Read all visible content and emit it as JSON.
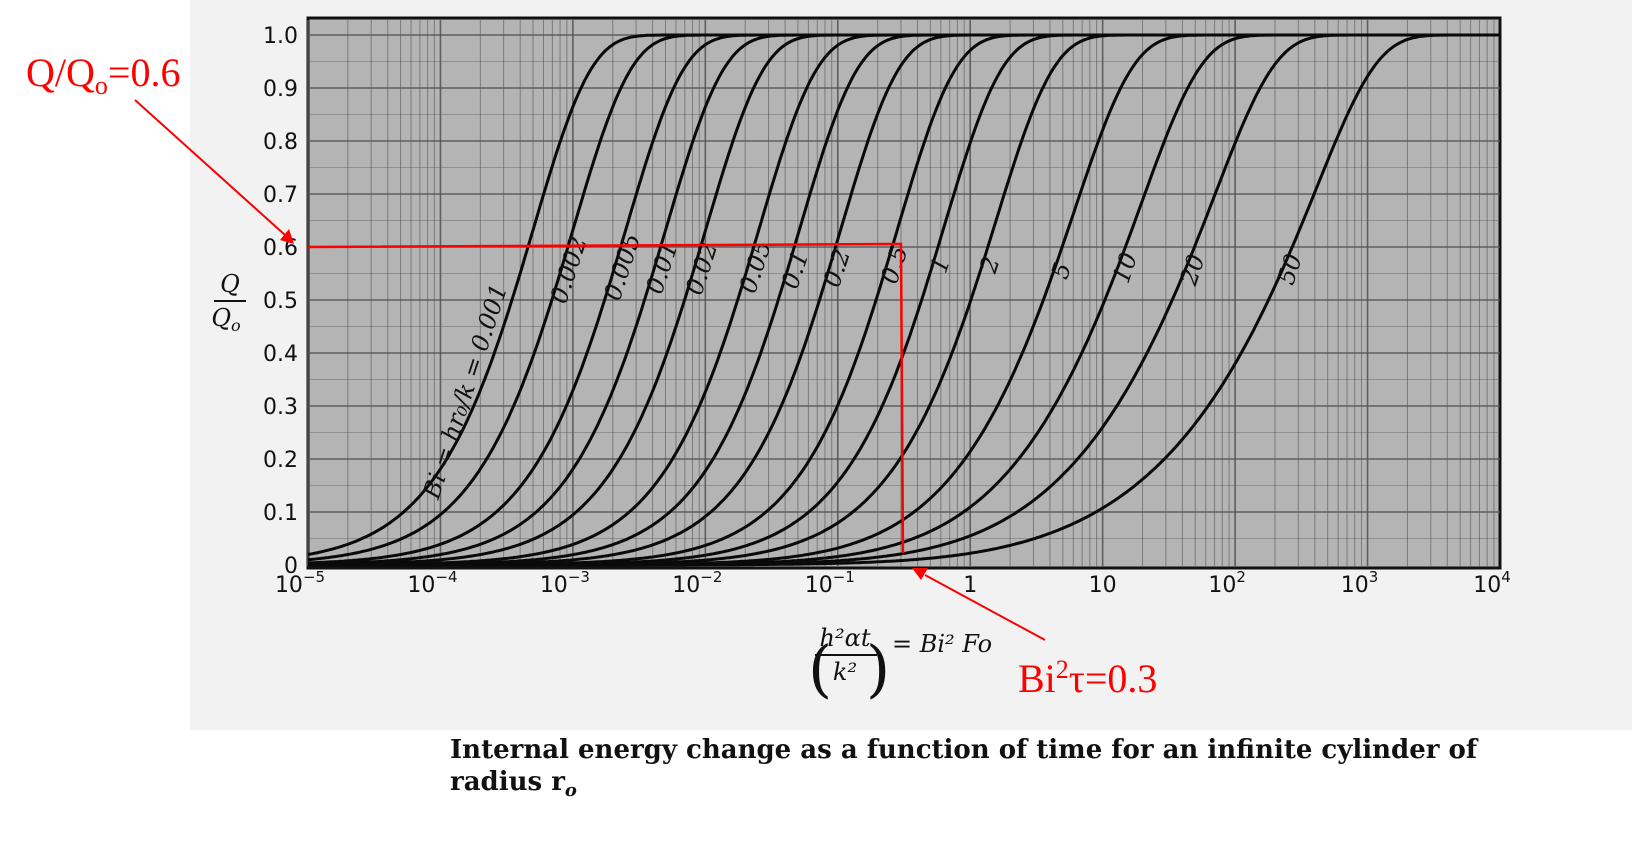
{
  "chart_data": {
    "type": "line",
    "title": "",
    "caption_line1": "Internal energy change as a function of time for an infinite cylinder of",
    "caption_line2": "radius r",
    "caption_sub": "o",
    "xscale": "log",
    "xlim": [
      1e-05,
      10000
    ],
    "ylim": [
      0,
      1.0
    ],
    "xticks": [
      1e-05,
      0.0001,
      0.001,
      0.01,
      0.1,
      1,
      10,
      100,
      1000,
      10000
    ],
    "xtick_labels": [
      {
        "base": "10",
        "exp": "−5"
      },
      {
        "base": "10",
        "exp": "−4"
      },
      {
        "base": "10",
        "exp": "−3"
      },
      {
        "base": "10",
        "exp": "−2"
      },
      {
        "base": "10",
        "exp": "−1"
      },
      {
        "base": "1",
        "exp": ""
      },
      {
        "base": "10",
        "exp": ""
      },
      {
        "base": "10",
        "exp": "2"
      },
      {
        "base": "10",
        "exp": "3"
      },
      {
        "base": "10",
        "exp": "4"
      }
    ],
    "yticks": [
      0,
      0.1,
      0.2,
      0.3,
      0.4,
      0.5,
      0.6,
      0.7,
      0.8,
      0.9,
      1.0
    ],
    "ytick_labels": [
      "0",
      "0.1",
      "0.2",
      "0.3",
      "0.4",
      "0.5",
      "0.6",
      "0.7",
      "0.8",
      "0.9",
      "1.0"
    ],
    "ylabel_num": "Q",
    "ylabel_den": "Q",
    "ylabel_den_sub": "o",
    "xlabel_num": "h²αt",
    "xlabel_den": "k²",
    "xlabel_rhs": "= Bi² Fo",
    "grid": true,
    "series_parameter": "Bi = hr₀/k",
    "series": [
      {
        "name": "Bi = hr₀/k = 0.001",
        "bi": 0.001
      },
      {
        "name": "0.002",
        "bi": 0.002
      },
      {
        "name": "0.005",
        "bi": 0.005
      },
      {
        "name": "0.01",
        "bi": 0.01
      },
      {
        "name": "0.02",
        "bi": 0.02
      },
      {
        "name": "0.05",
        "bi": 0.05
      },
      {
        "name": "0.1",
        "bi": 0.1
      },
      {
        "name": "0.2",
        "bi": 0.2
      },
      {
        "name": "0.5",
        "bi": 0.5
      },
      {
        "name": "1",
        "bi": 1
      },
      {
        "name": "2",
        "bi": 2
      },
      {
        "name": "5",
        "bi": 5
      },
      {
        "name": "10",
        "bi": 10
      },
      {
        "name": "20",
        "bi": 20
      },
      {
        "name": "50",
        "bi": 50
      }
    ],
    "annotations": {
      "q_label": "Q/Q",
      "q_sub": "o",
      "q_value": "=0.6",
      "q_level": 0.6,
      "x_label": "Bi",
      "x_sup": "2",
      "x_rest": "τ=0.3",
      "x_level": 0.3,
      "color": "#ff0000"
    }
  }
}
